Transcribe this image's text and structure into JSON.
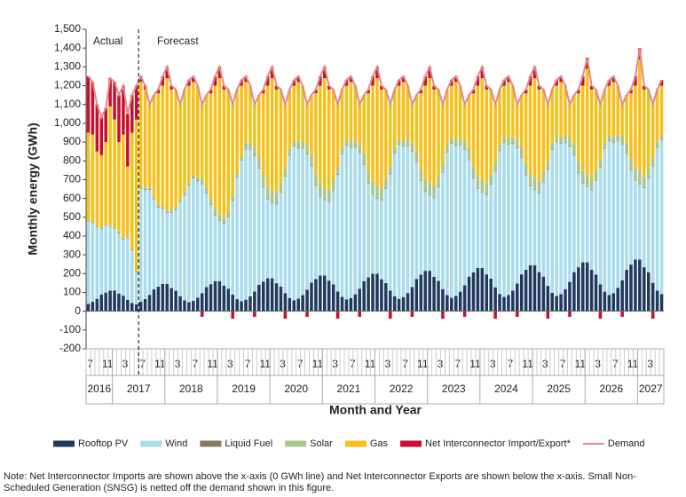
{
  "chart_data": {
    "type": "stacked_bar",
    "y_label": "Monthly energy (GWh)",
    "x_label": "Month and Year",
    "annotations": [
      "Actual",
      "Forecast"
    ],
    "note": [
      "Note: Net Interconnector Imports are shown above the x-axis (0 GWh line) and Net Interconnector Exports are shown below the x-axis. Small Non-",
      "Scheduled Generation (SNSG) is netted off the demand shown in this figure."
    ],
    "ylim": [
      -200,
      1500
    ],
    "yticks": [
      -200,
      -100,
      0,
      100,
      200,
      300,
      400,
      500,
      600,
      700,
      800,
      900,
      {
        "value": 1000,
        "label": "1,000"
      },
      {
        "value": 1100,
        "label": "1,100"
      },
      {
        "value": 1200,
        "label": "1,200"
      },
      {
        "value": 1300,
        "label": "1,300"
      },
      {
        "value": 1400,
        "label": "1,400"
      },
      {
        "value": 1500,
        "label": "1,500"
      }
    ],
    "grid": false,
    "legend": "bottom",
    "years": [
      "2016",
      "2017",
      "2018",
      "2019",
      "2020",
      "2021",
      "2022",
      "2023",
      "2024",
      "2025",
      "2026",
      "2027"
    ],
    "categories": [
      "7",
      null,
      null,
      null,
      "11",
      null,
      null,
      null,
      "3",
      null,
      null,
      null,
      "7",
      null,
      null,
      null,
      "11",
      null,
      null,
      null,
      "3",
      null,
      null,
      null,
      "7",
      null,
      null,
      null,
      "11",
      null,
      null,
      null,
      "3",
      null,
      null,
      null,
      "7",
      null,
      null,
      null,
      "11",
      null,
      null,
      null,
      "3",
      null,
      null,
      null,
      "7",
      null,
      null,
      null,
      "11",
      null,
      null,
      null,
      "3",
      null,
      null,
      null,
      "7",
      null,
      null,
      null,
      "11",
      null,
      null,
      null,
      "3",
      null,
      null,
      null,
      "7",
      null,
      null,
      null,
      "11",
      null,
      null,
      null,
      "3",
      null,
      null,
      null,
      "7",
      null,
      null,
      null,
      "11",
      null,
      null,
      null,
      "3",
      null,
      null,
      null,
      "7",
      null,
      null,
      null,
      "11",
      null,
      null,
      null,
      "3",
      null,
      null,
      null,
      "7",
      null,
      null,
      null,
      "11",
      null,
      null,
      null,
      "3",
      null,
      null,
      null,
      "7",
      null,
      null,
      null,
      "11",
      null,
      null,
      null,
      "3",
      null,
      null,
      null
    ],
    "series": [
      {
        "name": "Rooftop PV",
        "color": "#1f3a5f",
        "values": [
          39,
          50,
          66,
          88,
          99,
          110,
          110,
          94,
          83,
          61,
          44,
          36,
          51,
          65,
          87,
          116,
          131,
          145,
          145,
          123,
          109,
          80,
          58,
          48,
          56,
          72,
          96,
          128,
          144,
          160,
          160,
          136,
          120,
          88,
          64,
          53,
          61,
          79,
          105,
          140,
          158,
          175,
          175,
          149,
          131,
          96,
          70,
          58,
          67,
          86,
          114,
          152,
          171,
          190,
          190,
          162,
          143,
          105,
          76,
          63,
          70,
          90,
          120,
          160,
          180,
          200,
          200,
          170,
          150,
          110,
          80,
          66,
          75,
          97,
          129,
          172,
          194,
          215,
          215,
          183,
          161,
          118,
          86,
          71,
          81,
          104,
          138,
          184,
          207,
          230,
          230,
          196,
          173,
          127,
          92,
          76,
          86,
          110,
          147,
          196,
          221,
          245,
          245,
          208,
          184,
          135,
          98,
          81,
          91,
          117,
          156,
          208,
          234,
          260,
          260,
          221,
          195,
          143,
          104,
          86,
          96,
          124,
          165,
          220,
          248,
          275,
          275,
          234,
          206,
          151,
          110,
          91
        ]
      },
      {
        "name": "Wind",
        "color": "#a9dceb",
        "values": [
          440,
          420,
          380,
          350,
          360,
          340,
          330,
          320,
          300,
          330,
          280,
          170,
          600,
          580,
          560,
          480,
          420,
          400,
          380,
          400,
          430,
          500,
          560,
          620,
          650,
          620,
          580,
          500,
          420,
          350,
          320,
          330,
          380,
          500,
          650,
          750,
          800,
          780,
          720,
          620,
          500,
          420,
          400,
          420,
          500,
          620,
          760,
          820,
          800,
          780,
          720,
          620,
          500,
          420,
          400,
          420,
          500,
          620,
          760,
          820,
          800,
          780,
          720,
          620,
          500,
          420,
          400,
          420,
          500,
          620,
          760,
          820,
          800,
          780,
          720,
          620,
          500,
          420,
          400,
          420,
          500,
          620,
          760,
          820,
          800,
          780,
          720,
          620,
          500,
          420,
          400,
          420,
          500,
          620,
          760,
          820,
          800,
          780,
          720,
          620,
          500,
          420,
          400,
          420,
          500,
          620,
          760,
          820,
          800,
          780,
          720,
          620,
          500,
          420,
          400,
          420,
          500,
          620,
          760,
          820,
          800,
          780,
          720,
          620,
          500,
          420,
          400,
          420,
          500,
          620,
          760,
          820
        ]
      },
      {
        "name": "Liquid Fuel",
        "color": "#8a7a5c",
        "values": [
          3,
          3,
          3,
          3,
          3,
          3,
          3,
          3,
          3,
          3,
          3,
          3,
          3,
          3,
          3,
          3,
          3,
          3,
          3,
          3,
          3,
          3,
          3,
          3,
          3,
          3,
          3,
          3,
          3,
          3,
          3,
          3,
          3,
          3,
          3,
          3,
          3,
          3,
          3,
          3,
          3,
          3,
          3,
          3,
          3,
          3,
          3,
          3,
          3,
          3,
          3,
          3,
          3,
          3,
          3,
          3,
          3,
          3,
          3,
          3,
          3,
          3,
          3,
          3,
          3,
          3,
          3,
          3,
          3,
          3,
          3,
          3,
          3,
          3,
          3,
          3,
          3,
          3,
          3,
          3,
          3,
          3,
          3,
          3,
          3,
          3,
          3,
          3,
          3,
          3,
          3,
          3,
          3,
          3,
          3,
          3,
          3,
          3,
          3,
          3,
          3,
          3,
          3,
          3,
          3,
          3,
          3,
          3,
          3,
          3,
          3,
          3,
          3,
          3,
          3,
          3,
          3,
          3,
          3,
          3,
          3,
          3,
          3,
          3,
          3,
          3,
          3,
          3,
          3,
          3,
          3,
          3
        ]
      },
      {
        "name": "Solar",
        "color": "#a8c58e",
        "values": [
          2,
          2,
          2,
          2,
          2,
          2,
          2,
          2,
          2,
          2,
          2,
          2,
          10,
          10,
          10,
          10,
          10,
          10,
          10,
          10,
          10,
          10,
          10,
          10,
          15,
          18,
          22,
          28,
          30,
          33,
          33,
          30,
          25,
          20,
          15,
          13,
          30,
          35,
          45,
          55,
          60,
          65,
          65,
          60,
          50,
          40,
          30,
          25,
          30,
          35,
          45,
          55,
          60,
          65,
          65,
          60,
          50,
          40,
          30,
          25,
          30,
          35,
          45,
          55,
          60,
          65,
          65,
          60,
          50,
          40,
          30,
          25,
          30,
          35,
          45,
          55,
          60,
          65,
          65,
          60,
          50,
          40,
          30,
          25,
          30,
          35,
          45,
          55,
          60,
          65,
          65,
          60,
          50,
          40,
          30,
          25,
          30,
          35,
          45,
          55,
          60,
          65,
          65,
          60,
          50,
          40,
          30,
          25,
          30,
          35,
          45,
          55,
          60,
          65,
          65,
          60,
          50,
          40,
          30,
          25,
          30,
          35,
          45,
          55,
          60,
          65,
          65,
          60,
          50,
          40,
          30,
          25
        ]
      },
      {
        "name": "Gas",
        "color": "#f5c01a",
        "values": [
          466,
          465,
          399,
          387,
          436,
          635,
          575,
          481,
          552,
          374,
          621,
          809,
          556,
          522,
          440,
          541,
          596,
          642,
          702,
          644,
          628,
          507,
          549,
          519,
          496,
          487,
          399,
          491,
          563,
          654,
          724,
          681,
          652,
          489,
          448,
          381,
          326,
          303,
          227,
          332,
          439,
          537,
          597,
          548,
          496,
          341,
          317,
          294,
          320,
          296,
          218,
          320,
          426,
          522,
          582,
          535,
          484,
          332,
          311,
          289,
          317,
          292,
          212,
          312,
          417,
          512,
          572,
          527,
          477,
          327,
          307,
          286,
          312,
          285,
          203,
          300,
          403,
          497,
          557,
          514,
          466,
          319,
          301,
          281,
          306,
          278,
          194,
          288,
          390,
          482,
          542,
          501,
          454,
          310,
          295,
          276,
          301,
          272,
          185,
          276,
          376,
          467,
          527,
          489,
          443,
          302,
          289,
          271,
          296,
          265,
          176,
          264,
          363,
          452,
          562,
          476,
          432,
          294,
          283,
          266,
          291,
          258,
          167,
          252,
          349,
          437,
          597,
          463,
          421,
          286,
          277,
          261
        ]
      },
      {
        "name": "Net Interconnector Import/Export*",
        "color": "#c8102e",
        "values": [
          300,
          280,
          250,
          200,
          180,
          150,
          200,
          250,
          260,
          280,
          200,
          180,
          30,
          20,
          0,
          0,
          20,
          50,
          60,
          20,
          0,
          0,
          0,
          30,
          30,
          0,
          -30,
          0,
          20,
          50,
          60,
          20,
          0,
          -40,
          0,
          30,
          30,
          0,
          -30,
          0,
          20,
          50,
          60,
          20,
          0,
          -40,
          0,
          30,
          30,
          0,
          -30,
          0,
          20,
          50,
          60,
          20,
          0,
          -40,
          0,
          30,
          30,
          0,
          -30,
          0,
          20,
          50,
          60,
          20,
          0,
          -40,
          0,
          30,
          30,
          0,
          -30,
          0,
          20,
          50,
          60,
          20,
          0,
          -40,
          0,
          30,
          30,
          0,
          -30,
          0,
          20,
          50,
          60,
          20,
          0,
          -40,
          0,
          30,
          30,
          0,
          -30,
          0,
          20,
          50,
          60,
          20,
          0,
          -40,
          0,
          30,
          30,
          0,
          -30,
          0,
          20,
          50,
          60,
          20,
          0,
          -40,
          0,
          30,
          30,
          0,
          -30,
          0,
          20,
          50,
          60,
          20,
          0,
          -40,
          0,
          30
        ]
      },
      {
        "name": "Demand",
        "color": "#e08888",
        "type": "line",
        "values": [
          1250,
          1220,
          1100,
          1030,
          1080,
          1240,
          1220,
          1150,
          1200,
          1050,
          1150,
          1200,
          1250,
          1200,
          1100,
          1150,
          1180,
          1250,
          1300,
          1200,
          1180,
          1100,
          1180,
          1230,
          1250,
          1200,
          1100,
          1150,
          1180,
          1250,
          1300,
          1200,
          1180,
          1100,
          1180,
          1230,
          1250,
          1200,
          1100,
          1150,
          1180,
          1250,
          1300,
          1200,
          1180,
          1100,
          1180,
          1230,
          1250,
          1200,
          1100,
          1150,
          1180,
          1250,
          1300,
          1200,
          1180,
          1100,
          1180,
          1230,
          1250,
          1200,
          1100,
          1150,
          1180,
          1250,
          1300,
          1200,
          1180,
          1100,
          1180,
          1230,
          1250,
          1200,
          1100,
          1150,
          1180,
          1250,
          1300,
          1200,
          1180,
          1100,
          1180,
          1230,
          1250,
          1200,
          1100,
          1150,
          1180,
          1250,
          1300,
          1200,
          1180,
          1100,
          1180,
          1230,
          1250,
          1200,
          1100,
          1150,
          1180,
          1250,
          1300,
          1200,
          1180,
          1100,
          1180,
          1230,
          1250,
          1200,
          1100,
          1150,
          1180,
          1250,
          1350,
          1200,
          1180,
          1100,
          1180,
          1230,
          1250,
          1200,
          1100,
          1150,
          1180,
          1250,
          1400,
          1200,
          1180,
          1100,
          1180,
          1230
        ]
      }
    ]
  }
}
